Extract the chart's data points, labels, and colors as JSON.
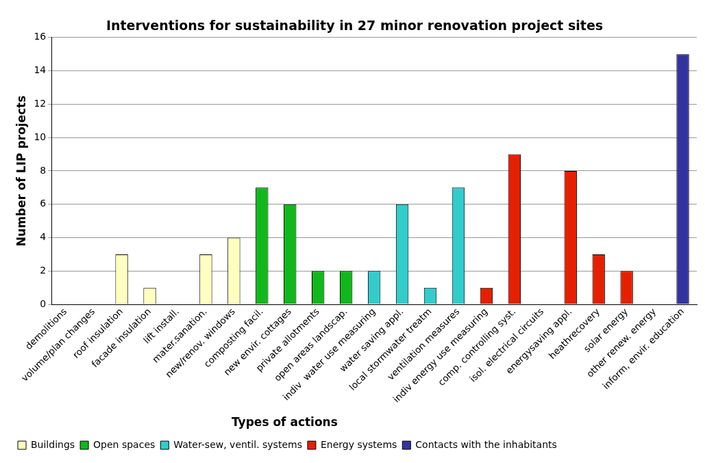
{
  "chart_data": {
    "type": "bar",
    "title": "Interventions for sustainability in 27 minor renovation project sites",
    "ylabel": "Number of LIP projects",
    "legend_title": "Types of actions",
    "categories": [
      "demolitions",
      "volume/plan changes",
      "roof insulation",
      "facade insulation",
      "lift install.",
      "mater.sanation.",
      "new/renov. windows",
      "composting facil.",
      "new envir. cottages",
      "private allotments",
      "open areas landscap.",
      "indiv  water use measuring",
      "water saving appl.",
      "local stormwater treatm",
      "ventilation measures",
      "indiv energy use measuring",
      "comp. controlling syst.",
      "isol. electrical circuits",
      "energysaving appl.",
      "heathrecovery",
      "solar energy",
      "other renew. energy",
      "inform, envir. education"
    ],
    "series": [
      {
        "name": "Buildings",
        "color": "#ffffc0",
        "values": [
          0,
          0,
          3,
          1,
          0,
          3,
          4,
          null,
          null,
          null,
          null,
          null,
          null,
          null,
          null,
          null,
          null,
          null,
          null,
          null,
          null,
          null,
          null
        ]
      },
      {
        "name": "Open spaces",
        "color": "#11b81b",
        "values": [
          null,
          null,
          null,
          null,
          null,
          null,
          null,
          7,
          6,
          2,
          2,
          null,
          null,
          null,
          null,
          null,
          null,
          null,
          null,
          null,
          null,
          null,
          null
        ]
      },
      {
        "name": "Water-sew, ventil. systems",
        "color": "#33cccc",
        "values": [
          null,
          null,
          null,
          null,
          null,
          null,
          null,
          null,
          null,
          null,
          null,
          2,
          6,
          1,
          7,
          null,
          null,
          null,
          null,
          null,
          null,
          null,
          null
        ]
      },
      {
        "name": "Energy systems",
        "color": "#e52000",
        "values": [
          null,
          null,
          null,
          null,
          null,
          null,
          null,
          null,
          null,
          null,
          null,
          null,
          null,
          null,
          null,
          1,
          9,
          0,
          8,
          3,
          2,
          0,
          null
        ]
      },
      {
        "name": "Contacts with the inhabitants",
        "color": "#3333a0",
        "values": [
          null,
          null,
          null,
          null,
          null,
          null,
          null,
          null,
          null,
          null,
          null,
          null,
          null,
          null,
          null,
          null,
          null,
          null,
          null,
          null,
          null,
          null,
          15
        ]
      }
    ],
    "ylim": [
      0,
      16
    ],
    "yticks": [
      0,
      2,
      4,
      6,
      8,
      10,
      12,
      14,
      16
    ],
    "grid": "y",
    "legend": "bottom"
  }
}
